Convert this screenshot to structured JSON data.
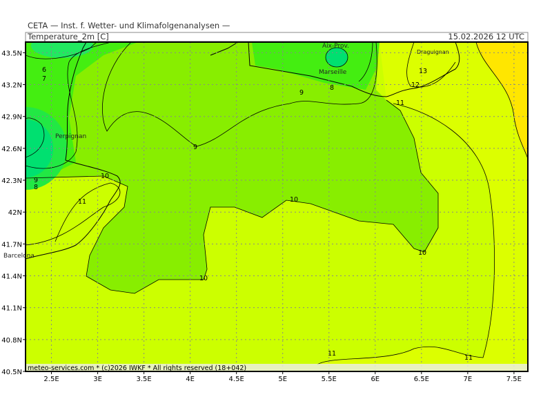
{
  "header": {
    "institute": "CETA — Inst. f. Wetter- und Klimafolgenanalysen —",
    "title": "Temperature_2m [C]",
    "datetime": "15.02.2026 12 UTC"
  },
  "map": {
    "xlim": [
      2.22,
      7.65
    ],
    "ylim": [
      40.5,
      43.6
    ],
    "xticks": [
      {
        "value": 2.5,
        "label": "2.5E"
      },
      {
        "value": 3,
        "label": "3E"
      },
      {
        "value": 3.5,
        "label": "3.5E"
      },
      {
        "value": 4,
        "label": "4E"
      },
      {
        "value": 4.5,
        "label": "4.5E"
      },
      {
        "value": 5,
        "label": "5E"
      },
      {
        "value": 5.5,
        "label": "5.5E"
      },
      {
        "value": 6,
        "label": "6E"
      },
      {
        "value": 6.5,
        "label": "6.5E"
      },
      {
        "value": 7,
        "label": "7E"
      },
      {
        "value": 7.5,
        "label": "7.5E"
      }
    ],
    "yticks": [
      {
        "value": 40.5,
        "label": "40.5N"
      },
      {
        "value": 40.8,
        "label": "40.8N"
      },
      {
        "value": 41.1,
        "label": "41.1N"
      },
      {
        "value": 41.4,
        "label": "41.4N"
      },
      {
        "value": 41.7,
        "label": "41.7N"
      },
      {
        "value": 42,
        "label": "42N"
      },
      {
        "value": 42.3,
        "label": "42.3N"
      },
      {
        "value": 42.6,
        "label": "42.6N"
      },
      {
        "value": 42.9,
        "label": "42.9N"
      },
      {
        "value": 43.2,
        "label": "43.2N"
      },
      {
        "value": 43.5,
        "label": "43.5N"
      }
    ],
    "places": [
      "Perpignan",
      "Barcelona",
      "Aix-Prov.",
      "Marseille",
      "Draguignan"
    ],
    "contour_labels": [
      6,
      7,
      9,
      9,
      8,
      11,
      12,
      13,
      10,
      10,
      10,
      10,
      11,
      11,
      11,
      9,
      8
    ]
  },
  "footer": "meteo-services.com * (c)2026 IWKF * All rights reserved (18+042)"
}
